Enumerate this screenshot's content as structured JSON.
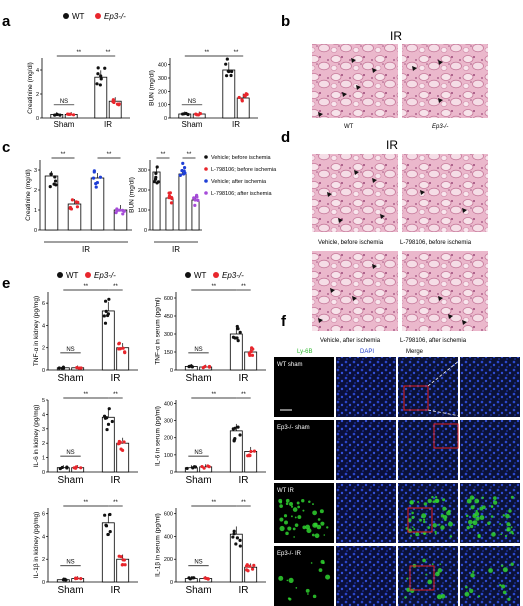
{
  "panel_labels": {
    "a": "a",
    "b": "b",
    "c": "c",
    "d": "d",
    "e": "e",
    "f": "f"
  },
  "legend_wt_ep3": {
    "wt": "WT",
    "ep3": "Ep3-/-"
  },
  "colors": {
    "wt": "#111111",
    "ep3": "#e8262c",
    "vehicle_before": "#111111",
    "l798_before": "#e8262c",
    "vehicle_after": "#1f3fd6",
    "l798_after": "#a64cd9",
    "tissue": "#e6a7bf",
    "fluor_green": "#2fd12f",
    "fluor_blue": "#2440c8",
    "box_red": "#e0201f"
  },
  "panel_a": {
    "charts": [
      {
        "ylabel": "Creatinine (mg/dl)",
        "ticks": [
          "0",
          "2",
          "4"
        ],
        "groups": [
          "Sham",
          "IR"
        ],
        "sig": [
          "NS",
          "**",
          "**"
        ]
      },
      {
        "ylabel": "BUN (mg/dl)",
        "ticks": [
          "0",
          "100",
          "200",
          "300",
          "400"
        ],
        "groups": [
          "Sham",
          "IR"
        ],
        "sig": [
          "NS",
          "**",
          "**"
        ]
      }
    ]
  },
  "panel_b": {
    "title": "IR",
    "captions": [
      "WT",
      "Ep3-/-"
    ]
  },
  "panel_c": {
    "charts": [
      {
        "ylabel": "Creatinine (mg/dl)",
        "ticks": [
          "0",
          "1",
          "2",
          "3"
        ],
        "group": "IR",
        "sig": [
          "**",
          "**"
        ]
      },
      {
        "ylabel": "BUN (mg/dl)",
        "ticks": [
          "0",
          "100",
          "200",
          "300"
        ],
        "group": "IR",
        "sig": [
          "**",
          "**"
        ]
      }
    ],
    "legend": [
      "Vehicle; before ischemia",
      "L-798106; before ischemia",
      "Vehicle; after ischemia",
      "L-798106; after ischemia"
    ]
  },
  "panel_d": {
    "title": "IR",
    "captions": [
      "Vehicle, before ischemia",
      "L-798106, before ischemia",
      "Vehicle, after ischemia",
      "L-798106, after ischemia"
    ]
  },
  "panel_e": {
    "charts": [
      {
        "ylabel": "TNF-α in kidney (pg/mg)",
        "ticks": [
          "0",
          "2",
          "4",
          "6"
        ],
        "groups": [
          "Sham",
          "IR"
        ],
        "sig": [
          "NS",
          "**",
          "**"
        ]
      },
      {
        "ylabel": "TNF-α in serum (pg/ml)",
        "ticks": [
          "0",
          "150",
          "300",
          "450",
          "600"
        ],
        "groups": [
          "Sham",
          "IR"
        ],
        "sig": [
          "NS",
          "**",
          "**"
        ]
      },
      {
        "ylabel": "IL-6 in kidney (pg/mg)",
        "ticks": [
          "0",
          "1",
          "2",
          "3",
          "4",
          "5"
        ],
        "groups": [
          "Sham",
          "IR"
        ],
        "sig": [
          "NS",
          "**",
          "**"
        ]
      },
      {
        "ylabel": "IL-6 in serum (pg/ml)",
        "ticks": [
          "0",
          "100",
          "200",
          "300",
          "400"
        ],
        "groups": [
          "Sham",
          "IR"
        ],
        "sig": [
          "NS",
          "**",
          "**"
        ]
      },
      {
        "ylabel": "IL-1β in kidney (pg/mg)",
        "ticks": [
          "0",
          "2",
          "4",
          "6"
        ],
        "groups": [
          "Sham",
          "IR"
        ],
        "sig": [
          "NS",
          "**",
          "**"
        ]
      },
      {
        "ylabel": "IL-1β in serum (pg/ml)",
        "ticks": [
          "0",
          "200",
          "400",
          "600"
        ],
        "groups": [
          "Sham",
          "IR"
        ],
        "sig": [
          "NS",
          "**",
          "**"
        ]
      }
    ]
  },
  "panel_f": {
    "columns": [
      "Ly-6B",
      "DAPI",
      "Merge"
    ],
    "rows": [
      "WT sham",
      "Ep3-/- sham",
      "WT IR",
      "Ep3-/- IR"
    ]
  },
  "chart_data": [
    {
      "type": "bar",
      "panel": "a",
      "ylabel": "Creatinine (mg/dl)",
      "ylim": [
        0,
        5
      ],
      "categories": [
        "Sham",
        "IR"
      ],
      "series": [
        {
          "name": "WT",
          "values": [
            0.3,
            3.4
          ]
        },
        {
          "name": "Ep3-/-",
          "values": [
            0.3,
            1.4
          ]
        }
      ]
    },
    {
      "type": "bar",
      "panel": "a",
      "ylabel": "BUN (mg/dl)",
      "ylim": [
        0,
        450
      ],
      "categories": [
        "Sham",
        "IR"
      ],
      "series": [
        {
          "name": "WT",
          "values": [
            30,
            360
          ]
        },
        {
          "name": "Ep3-/-",
          "values": [
            30,
            150
          ]
        }
      ]
    },
    {
      "type": "bar",
      "panel": "c",
      "ylabel": "Creatinine (mg/dl)",
      "ylim": [
        0,
        3.5
      ],
      "categories": [
        "IR"
      ],
      "series": [
        {
          "name": "Vehicle; before ischemia",
          "values": [
            2.7
          ]
        },
        {
          "name": "L-798106; before ischemia",
          "values": [
            1.3
          ]
        },
        {
          "name": "Vehicle; after ischemia",
          "values": [
            2.6
          ]
        },
        {
          "name": "L-798106; after ischemia",
          "values": [
            1.0
          ]
        }
      ]
    },
    {
      "type": "bar",
      "panel": "c",
      "ylabel": "BUN (mg/dl)",
      "ylim": [
        0,
        350
      ],
      "categories": [
        "IR"
      ],
      "series": [
        {
          "name": "Vehicle; before ischemia",
          "values": [
            290
          ]
        },
        {
          "name": "L-798106; before ischemia",
          "values": [
            160
          ]
        },
        {
          "name": "Vehicle; after ischemia",
          "values": [
            280
          ]
        },
        {
          "name": "L-798106; after ischemia",
          "values": [
            150
          ]
        }
      ]
    },
    {
      "type": "bar",
      "panel": "e",
      "ylabel": "TNF-α in kidney (pg/mg)",
      "ylim": [
        0,
        7
      ],
      "categories": [
        "Sham",
        "IR"
      ],
      "series": [
        {
          "name": "WT",
          "values": [
            0.2,
            5.3
          ]
        },
        {
          "name": "Ep3-/-",
          "values": [
            0.2,
            2.0
          ]
        }
      ]
    },
    {
      "type": "bar",
      "panel": "e",
      "ylabel": "TNF-α in serum (pg/ml)",
      "ylim": [
        0,
        650
      ],
      "categories": [
        "Sham",
        "IR"
      ],
      "series": [
        {
          "name": "WT",
          "values": [
            30,
            300
          ]
        },
        {
          "name": "Ep3-/-",
          "values": [
            25,
            150
          ]
        }
      ]
    },
    {
      "type": "bar",
      "panel": "e",
      "ylabel": "IL-6 in kidney (pg/mg)",
      "ylim": [
        0,
        5
      ],
      "categories": [
        "Sham",
        "IR"
      ],
      "series": [
        {
          "name": "WT",
          "values": [
            0.3,
            3.8
          ]
        },
        {
          "name": "Ep3-/-",
          "values": [
            0.3,
            2.0
          ]
        }
      ]
    },
    {
      "type": "bar",
      "panel": "e",
      "ylabel": "IL-6 in serum (pg/ml)",
      "ylim": [
        0,
        420
      ],
      "categories": [
        "Sham",
        "IR"
      ],
      "series": [
        {
          "name": "WT",
          "values": [
            25,
            240
          ]
        },
        {
          "name": "Ep3-/-",
          "values": [
            30,
            120
          ]
        }
      ]
    },
    {
      "type": "bar",
      "panel": "e",
      "ylabel": "IL-1β in kidney (pg/mg)",
      "ylim": [
        0,
        6.5
      ],
      "categories": [
        "Sham",
        "IR"
      ],
      "series": [
        {
          "name": "WT",
          "values": [
            0.2,
            5.2
          ]
        },
        {
          "name": "Ep3-/-",
          "values": [
            0.3,
            2.0
          ]
        }
      ]
    },
    {
      "type": "bar",
      "panel": "e",
      "ylabel": "IL-1β in serum (pg/ml)",
      "ylim": [
        0,
        650
      ],
      "categories": [
        "Sham",
        "IR"
      ],
      "series": [
        {
          "name": "WT",
          "values": [
            30,
            420
          ]
        },
        {
          "name": "Ep3-/-",
          "values": [
            30,
            130
          ]
        }
      ]
    }
  ]
}
